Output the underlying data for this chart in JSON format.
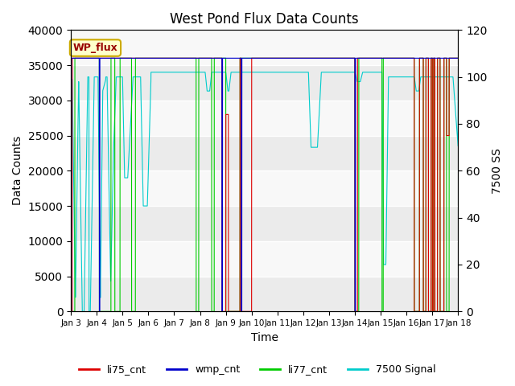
{
  "title": "West Pond Flux Data Counts",
  "xlabel": "Time",
  "ylabel_left": "Data Counts",
  "ylabel_right": "7500 SS",
  "ylim_left": [
    0,
    40000
  ],
  "ylim_right": [
    0,
    120
  ],
  "annotation_text": "WP_flux",
  "annotation_bg": "#ffffcc",
  "annotation_edge": "#ccaa00",
  "xtick_labels": [
    "Jan 3",
    "Jan 4",
    "Jan 5",
    "Jan 6",
    "Jan 7",
    "Jan 8",
    "Jan 9",
    "Jan 10",
    "Jan 11",
    "Jan 12",
    "Jan 13",
    "Jan 14",
    "Jan 15",
    "Jan 16",
    "Jan 17",
    "Jan 18"
  ],
  "colors": {
    "li75_cnt": "#dd0000",
    "wmp_cnt": "#0000cc",
    "li77_cnt": "#00cc00",
    "signal": "#00cccc"
  },
  "legend_labels": [
    "li75_cnt",
    "wmp_cnt",
    "li77_cnt",
    "7500 Signal"
  ],
  "grid_colors": [
    "#ffffff",
    "#dddddd"
  ],
  "band_colors": [
    "#e8e8e8",
    "#f5f5f5"
  ]
}
